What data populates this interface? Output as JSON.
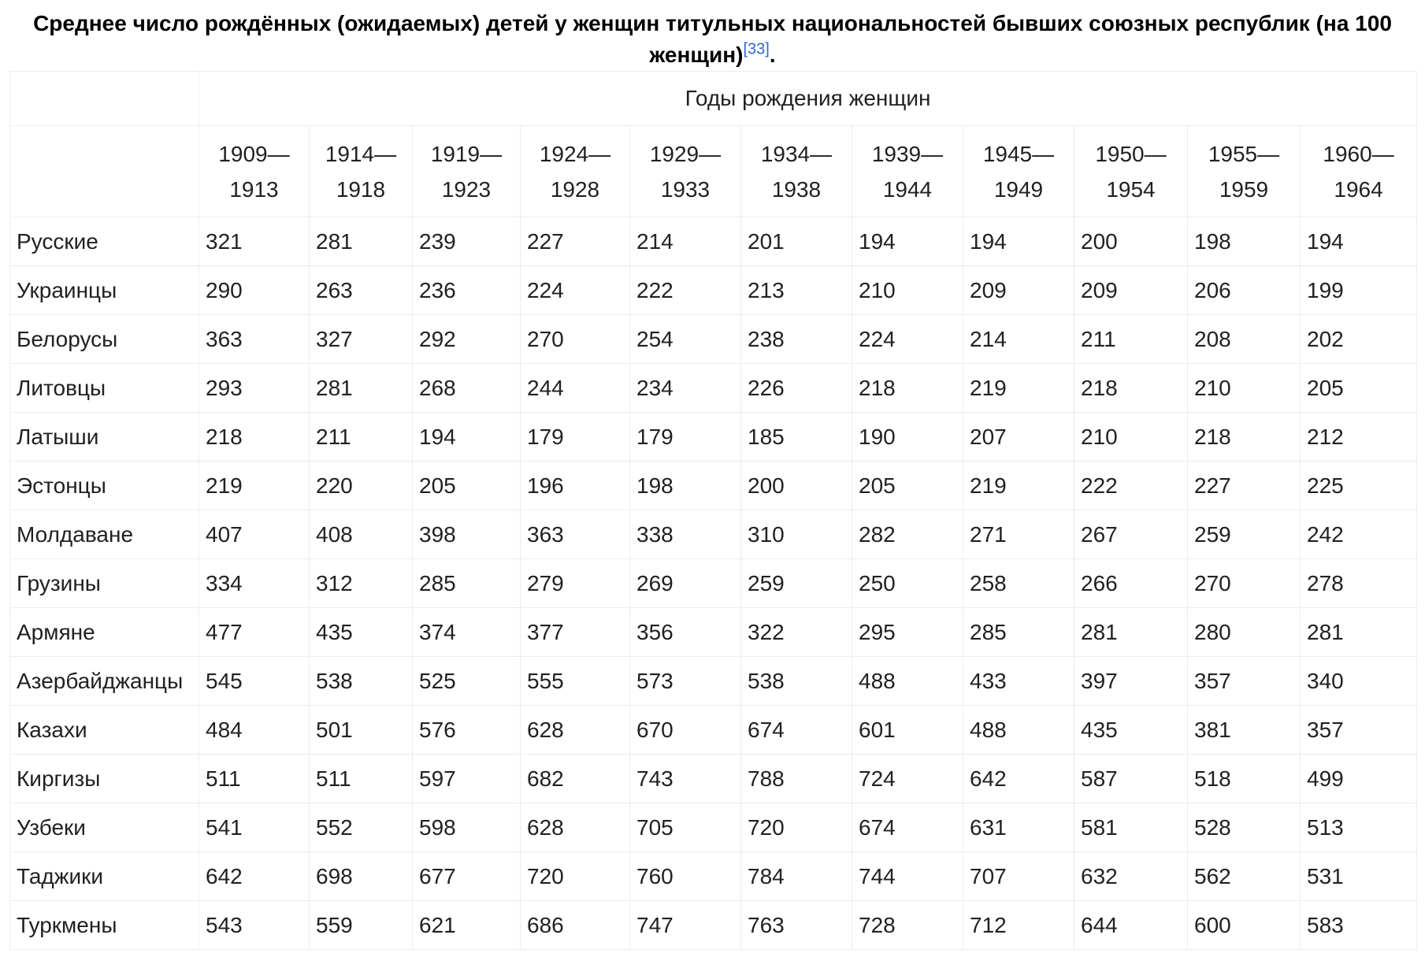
{
  "caption": {
    "text": "Среднее число рождённых (ожидаемых) детей у женщин титульных национальностей бывших союзных республик (на 100 женщин)",
    "ref": "[33]",
    "end": "."
  },
  "table": {
    "group_header": "Годы рождения женщин",
    "columns": [
      {
        "start": "1909—",
        "end": "1913"
      },
      {
        "start": "1914—",
        "end": "1918"
      },
      {
        "start": "1919—",
        "end": "1923"
      },
      {
        "start": "1924—",
        "end": "1928"
      },
      {
        "start": "1929—",
        "end": "1933"
      },
      {
        "start": "1934—",
        "end": "1938"
      },
      {
        "start": "1939—",
        "end": "1944"
      },
      {
        "start": "1945—",
        "end": "1949"
      },
      {
        "start": "1950—",
        "end": "1954"
      },
      {
        "start": "1955—",
        "end": "1959"
      },
      {
        "start": "1960—",
        "end": "1964"
      }
    ],
    "rows": [
      {
        "name": "Русские",
        "values": [
          "321",
          "281",
          "239",
          "227",
          "214",
          "201",
          "194",
          "194",
          "200",
          "198",
          "194"
        ]
      },
      {
        "name": "Украинцы",
        "values": [
          "290",
          "263",
          "236",
          "224",
          "222",
          "213",
          "210",
          "209",
          "209",
          "206",
          "199"
        ]
      },
      {
        "name": "Белорусы",
        "values": [
          "363",
          "327",
          "292",
          "270",
          "254",
          "238",
          "224",
          "214",
          "211",
          "208",
          "202"
        ]
      },
      {
        "name": "Литовцы",
        "values": [
          "293",
          "281",
          "268",
          "244",
          "234",
          "226",
          "218",
          "219",
          "218",
          "210",
          "205"
        ]
      },
      {
        "name": "Латыши",
        "values": [
          "218",
          "211",
          "194",
          "179",
          "179",
          "185",
          "190",
          "207",
          "210",
          "218",
          "212"
        ]
      },
      {
        "name": "Эстонцы",
        "values": [
          "219",
          "220",
          "205",
          "196",
          "198",
          "200",
          "205",
          "219",
          "222",
          "227",
          "225"
        ]
      },
      {
        "name": "Молдаване",
        "values": [
          "407",
          "408",
          "398",
          "363",
          "338",
          "310",
          "282",
          "271",
          "267",
          "259",
          "242"
        ]
      },
      {
        "name": "Грузины",
        "values": [
          "334",
          "312",
          "285",
          "279",
          "269",
          "259",
          "250",
          "258",
          "266",
          "270",
          "278"
        ]
      },
      {
        "name": "Армяне",
        "values": [
          "477",
          "435",
          "374",
          "377",
          "356",
          "322",
          "295",
          "285",
          "281",
          "280",
          "281"
        ]
      },
      {
        "name": "Азербайджанцы",
        "values": [
          "545",
          "538",
          "525",
          "555",
          "573",
          "538",
          "488",
          "433",
          "397",
          "357",
          "340"
        ]
      },
      {
        "name": "Казахи",
        "values": [
          "484",
          "501",
          "576",
          "628",
          "670",
          "674",
          "601",
          "488",
          "435",
          "381",
          "357"
        ]
      },
      {
        "name": "Киргизы",
        "values": [
          "511",
          "511",
          "597",
          "682",
          "743",
          "788",
          "724",
          "642",
          "587",
          "518",
          "499"
        ]
      },
      {
        "name": "Узбеки",
        "values": [
          "541",
          "552",
          "598",
          "628",
          "705",
          "720",
          "674",
          "631",
          "581",
          "528",
          "513"
        ]
      },
      {
        "name": "Таджики",
        "values": [
          "642",
          "698",
          "677",
          "720",
          "760",
          "784",
          "744",
          "707",
          "632",
          "562",
          "531"
        ]
      },
      {
        "name": "Туркмены",
        "values": [
          "543",
          "559",
          "621",
          "686",
          "747",
          "763",
          "728",
          "712",
          "644",
          "600",
          "583"
        ]
      }
    ]
  }
}
